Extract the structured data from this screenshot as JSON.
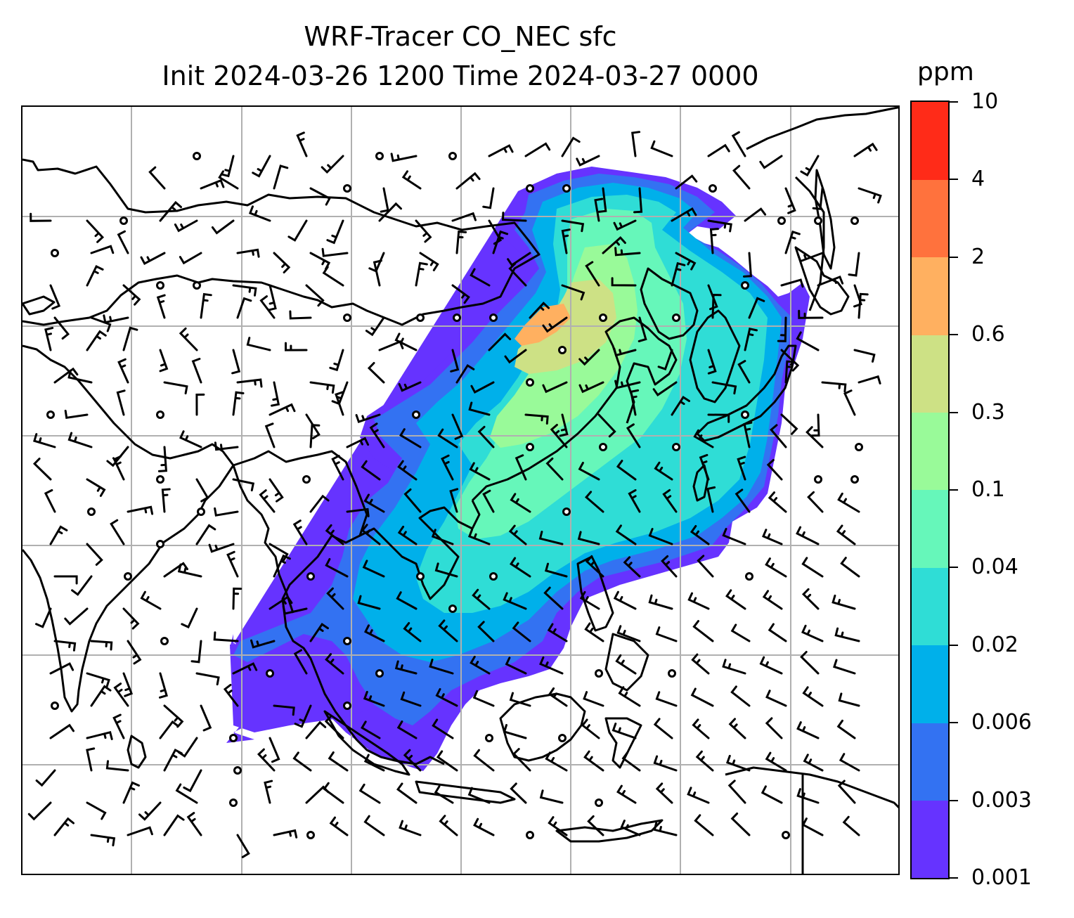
{
  "title": {
    "line1": "WRF-Tracer CO_NEC sfc",
    "line2": "Init 2024-03-26 1200 Time 2024-03-27 0000"
  },
  "colorbar": {
    "unit": "ppm",
    "levels": [
      "0.001",
      "0.003",
      "0.006",
      "0.02",
      "0.04",
      "0.1",
      "0.3",
      "0.6",
      "2",
      "4",
      "10"
    ],
    "colors": [
      "#6633ff",
      "#3372f2",
      "#00b0ea",
      "#2fddd6",
      "#66f7ba",
      "#99fa99",
      "#cde185",
      "#ffb060",
      "#ff723d",
      "#ff2b18"
    ]
  },
  "map": {
    "gridlines": true,
    "coastline_color": "#000000",
    "gridline_color": "#b0b0b0",
    "wind_barbs": true
  }
}
